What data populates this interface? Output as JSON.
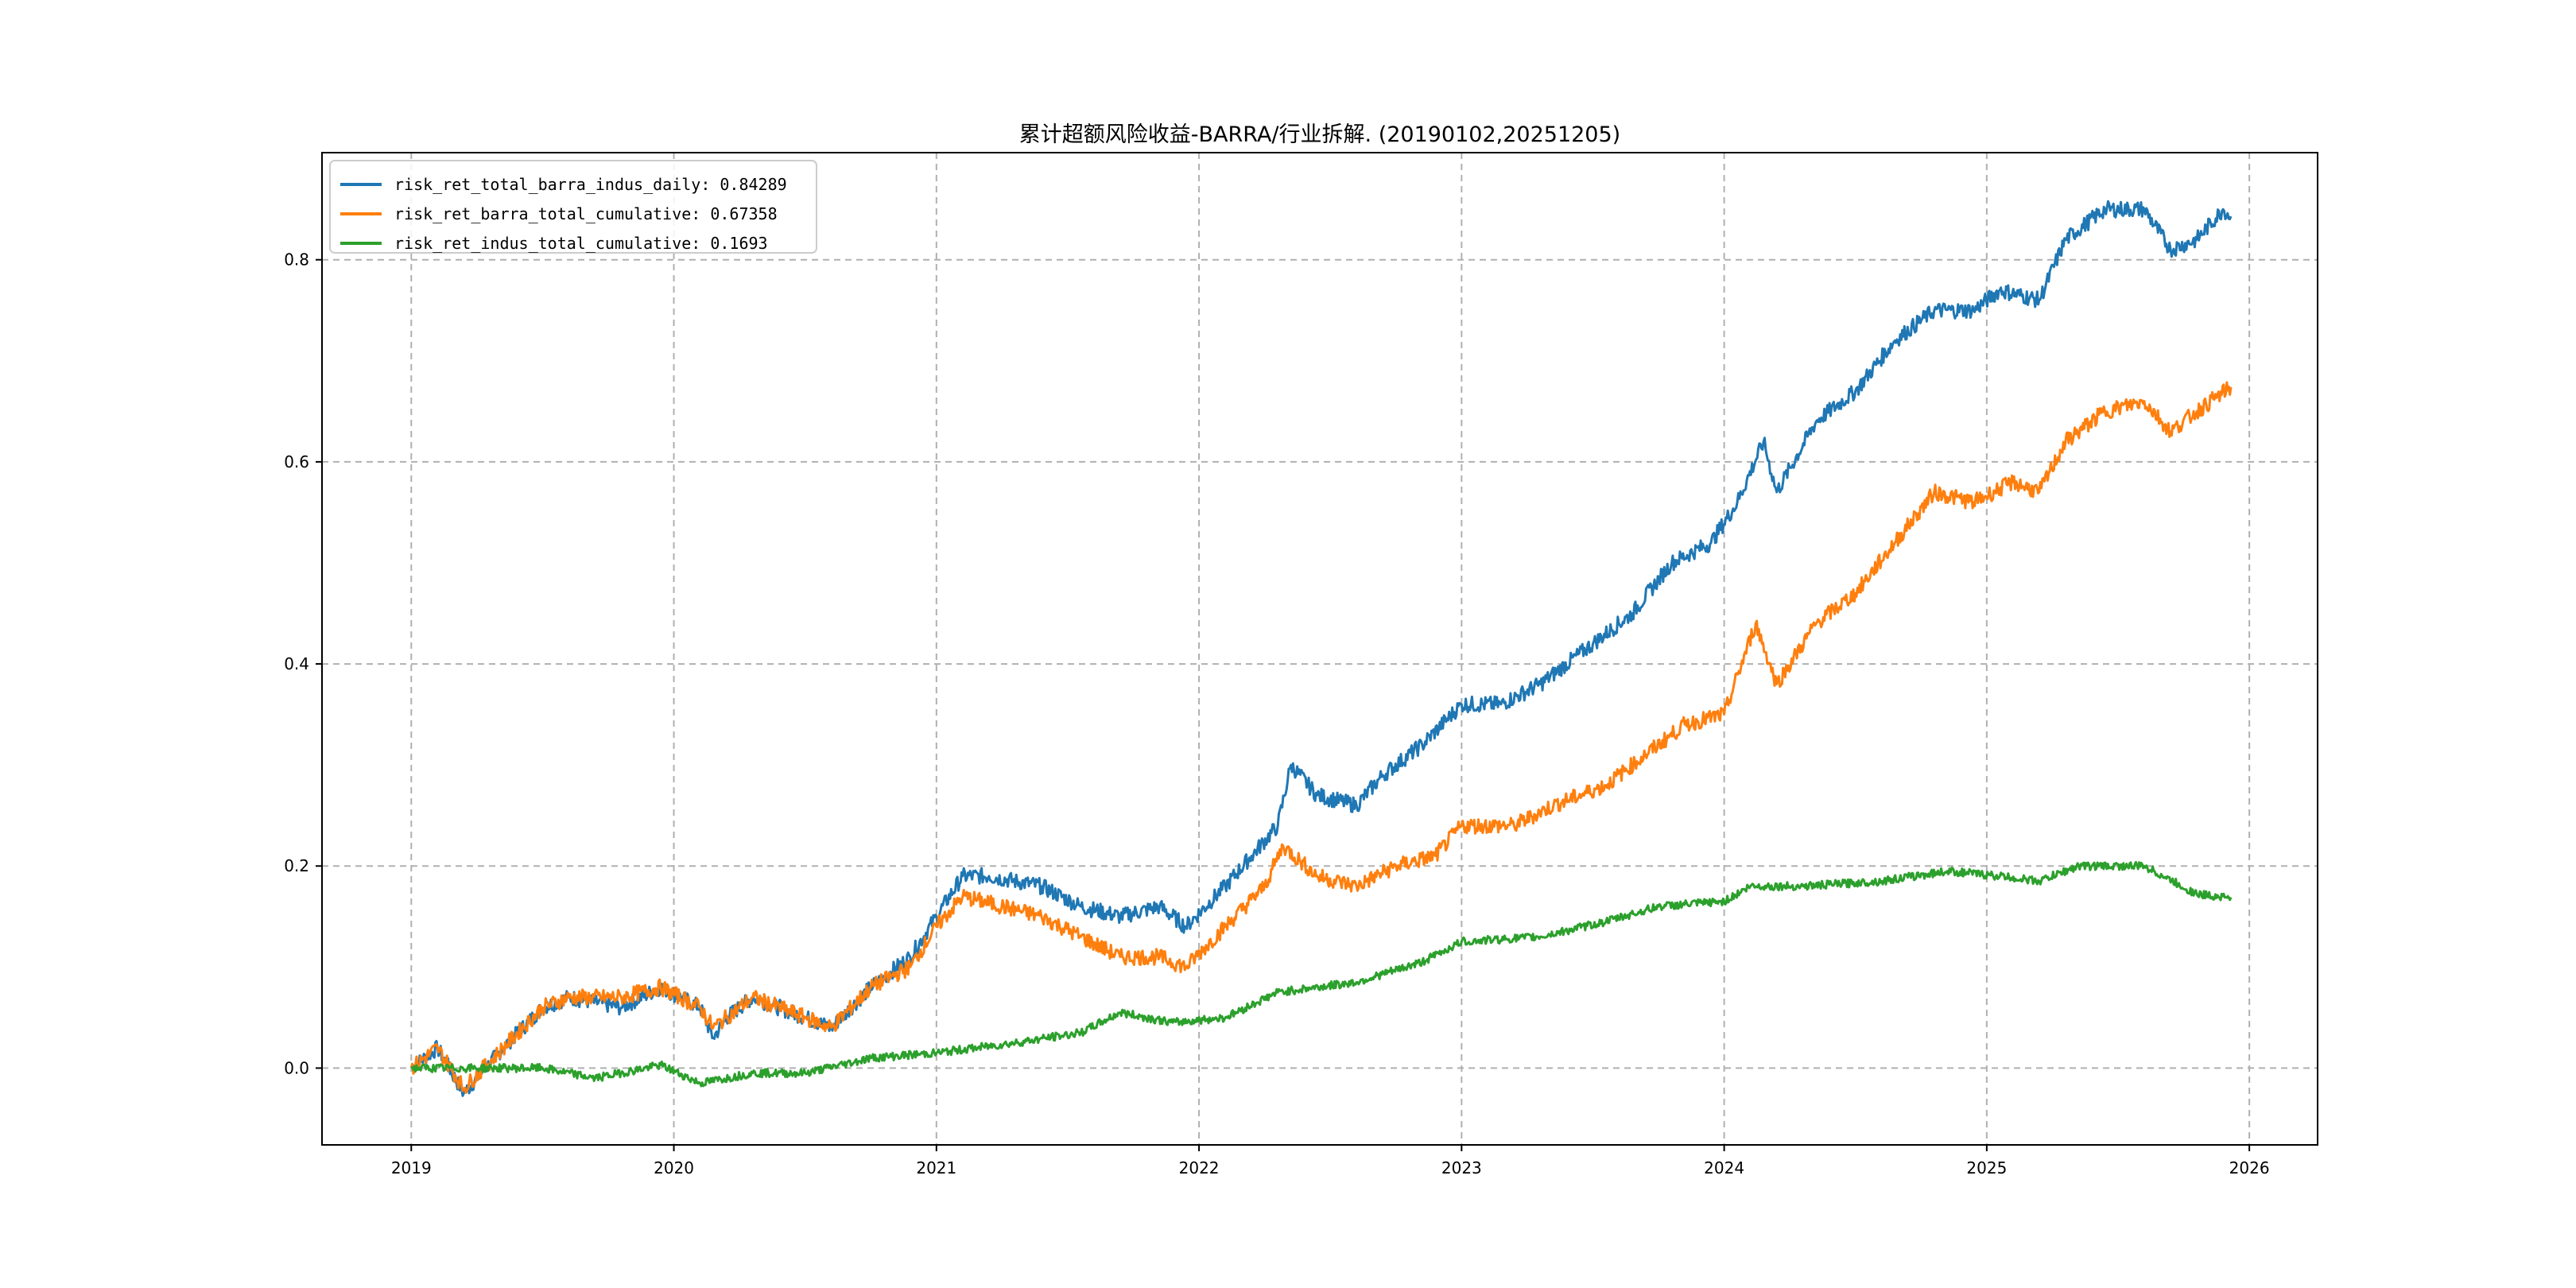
{
  "chart_data": {
    "type": "line",
    "title": "累计超额风险收益-BARRA/行业拆解. (20190102,20251205)",
    "xlabel": "",
    "ylabel": "",
    "xlim": [
      2018.66,
      2026.26
    ],
    "ylim": [
      -0.076,
      0.906
    ],
    "xticks": [
      2019,
      2020,
      2021,
      2022,
      2023,
      2024,
      2025,
      2026
    ],
    "xtick_labels": [
      "2019",
      "2020",
      "2021",
      "2022",
      "2023",
      "2024",
      "2025",
      "2026"
    ],
    "yticks": [
      0.0,
      0.2,
      0.4,
      0.6,
      0.8
    ],
    "ytick_labels": [
      "0.0",
      "0.2",
      "0.4",
      "0.6",
      "0.8"
    ],
    "grid": true,
    "legend_position": "top-left",
    "series": [
      {
        "name": "risk_ret_total_barra_indus_daily: 0.84289",
        "color": "#1f77b4",
        "x": [
          2019.0,
          2019.1,
          2019.2,
          2019.35,
          2019.5,
          2019.6,
          2019.8,
          2019.95,
          2020.1,
          2020.15,
          2020.2,
          2020.3,
          2020.5,
          2020.6,
          2020.75,
          2020.9,
          2021.0,
          2021.1,
          2021.2,
          2021.4,
          2021.55,
          2021.7,
          2021.85,
          2021.95,
          2022.1,
          2022.2,
          2022.3,
          2022.35,
          2022.45,
          2022.6,
          2022.7,
          2022.85,
          2023.0,
          2023.15,
          2023.3,
          2023.5,
          2023.65,
          2023.8,
          2023.95,
          2024.05,
          2024.15,
          2024.2,
          2024.35,
          2024.5,
          2024.65,
          2024.8,
          2024.95,
          2025.05,
          2025.2,
          2025.3,
          2025.45,
          2025.6,
          2025.7,
          2025.8,
          2025.9,
          2025.93
        ],
        "y": [
          0.0,
          0.02,
          -0.025,
          0.02,
          0.06,
          0.07,
          0.06,
          0.08,
          0.06,
          0.03,
          0.05,
          0.07,
          0.05,
          0.04,
          0.08,
          0.11,
          0.15,
          0.19,
          0.19,
          0.18,
          0.16,
          0.15,
          0.16,
          0.14,
          0.18,
          0.21,
          0.24,
          0.3,
          0.27,
          0.26,
          0.29,
          0.32,
          0.36,
          0.36,
          0.38,
          0.42,
          0.45,
          0.5,
          0.52,
          0.56,
          0.62,
          0.57,
          0.64,
          0.67,
          0.72,
          0.75,
          0.75,
          0.77,
          0.76,
          0.82,
          0.85,
          0.85,
          0.81,
          0.82,
          0.85,
          0.843
        ]
      },
      {
        "name": "risk_ret_barra_total_cumulative: 0.67358",
        "color": "#ff7f0e",
        "x": [
          2019.0,
          2019.1,
          2019.2,
          2019.35,
          2019.5,
          2019.6,
          2019.8,
          2019.95,
          2020.1,
          2020.15,
          2020.2,
          2020.3,
          2020.5,
          2020.6,
          2020.75,
          2020.9,
          2021.0,
          2021.1,
          2021.4,
          2021.55,
          2021.7,
          2021.85,
          2021.95,
          2022.1,
          2022.25,
          2022.32,
          2022.45,
          2022.6,
          2022.75,
          2022.9,
          2023.0,
          2023.2,
          2023.35,
          2023.55,
          2023.7,
          2023.85,
          2024.0,
          2024.12,
          2024.2,
          2024.35,
          2024.5,
          2024.65,
          2024.8,
          2024.95,
          2025.1,
          2025.2,
          2025.3,
          2025.45,
          2025.6,
          2025.7,
          2025.8,
          2025.93
        ],
        "y": [
          0.0,
          0.02,
          -0.02,
          0.02,
          0.06,
          0.07,
          0.07,
          0.08,
          0.06,
          0.04,
          0.05,
          0.07,
          0.05,
          0.04,
          0.08,
          0.1,
          0.14,
          0.17,
          0.15,
          0.13,
          0.11,
          0.11,
          0.1,
          0.14,
          0.18,
          0.22,
          0.19,
          0.18,
          0.2,
          0.21,
          0.24,
          0.24,
          0.26,
          0.28,
          0.31,
          0.34,
          0.35,
          0.44,
          0.38,
          0.44,
          0.47,
          0.52,
          0.57,
          0.56,
          0.58,
          0.57,
          0.62,
          0.65,
          0.66,
          0.63,
          0.65,
          0.674
        ]
      },
      {
        "name": "risk_ret_indus_total_cumulative: 0.1693",
        "color": "#2ca02c",
        "x": [
          2019.0,
          2019.5,
          2019.7,
          2019.95,
          2020.1,
          2020.3,
          2020.5,
          2020.75,
          2021.0,
          2021.3,
          2021.55,
          2021.7,
          2021.9,
          2022.1,
          2022.3,
          2022.6,
          2022.85,
          2023.0,
          2023.3,
          2023.55,
          2023.75,
          2024.0,
          2024.1,
          2024.3,
          2024.6,
          2024.85,
          2025.05,
          2025.2,
          2025.35,
          2025.6,
          2025.8,
          2025.93
        ],
        "y": [
          0.0,
          0.0,
          -0.01,
          0.003,
          -0.015,
          -0.005,
          -0.005,
          0.01,
          0.015,
          0.025,
          0.035,
          0.055,
          0.045,
          0.05,
          0.075,
          0.085,
          0.105,
          0.125,
          0.13,
          0.145,
          0.16,
          0.165,
          0.18,
          0.18,
          0.185,
          0.195,
          0.19,
          0.185,
          0.2,
          0.2,
          0.172,
          0.169
        ]
      }
    ]
  }
}
